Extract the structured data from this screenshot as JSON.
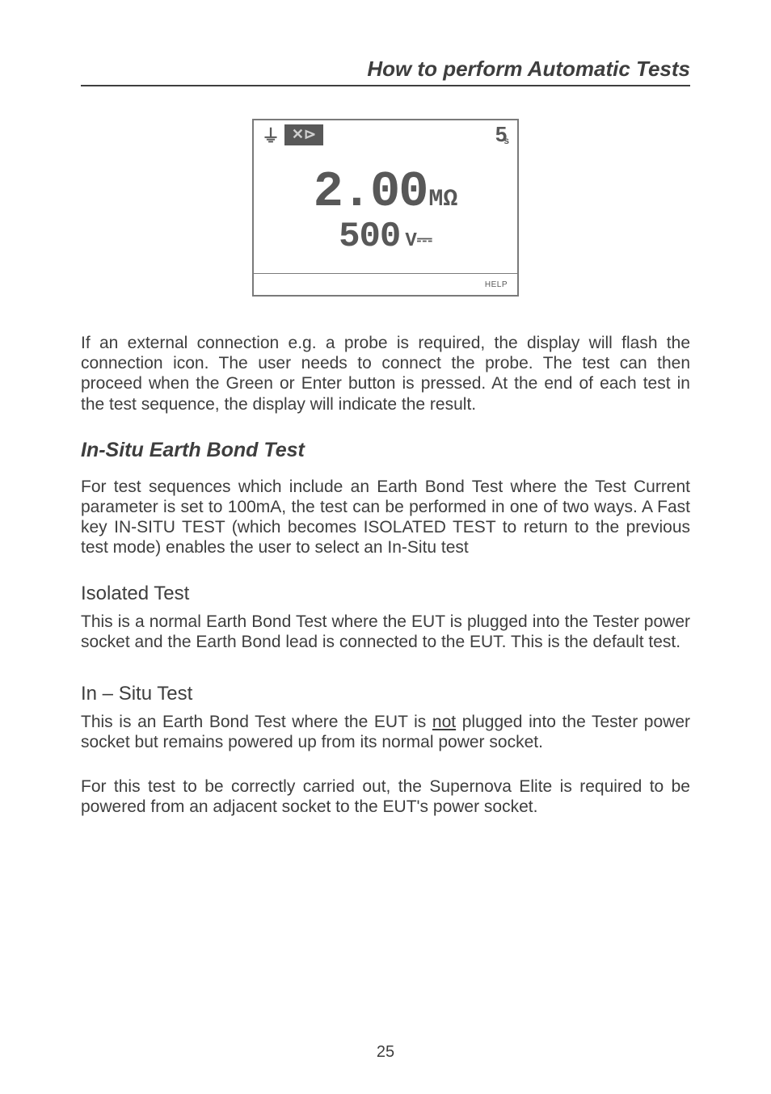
{
  "header": {
    "title": "How to perform Automatic Tests"
  },
  "lcd": {
    "timer_value": "5",
    "timer_unit": "s",
    "reading_value": "2.00",
    "reading_unit": "MΩ",
    "sub_value": "500",
    "sub_unit": "V⎓",
    "help_label": "HELP",
    "probe_glyph": "✕⊳",
    "earth_glyph": "⏚"
  },
  "paragraphs": {
    "intro": "If an external connection e.g. a probe is required, the display will flash the connection icon.  The user needs to connect the probe.  The test can then proceed when the Green or Enter button is pressed.  At the end of each test in the test sequence, the display will indicate the result.",
    "section1_title": "In-Situ Earth Bond Test",
    "section1_body": "For test sequences which include an Earth Bond Test where the Test Current parameter is set to 100mA, the test can be performed in one of two ways. A Fast key IN-SITU TEST (which becomes ISOLATED TEST to return to the previous test mode) enables the user to select an In-Situ test",
    "iso_title": "Isolated Test",
    "iso_body": "This is a normal Earth Bond Test where the EUT is plugged into the Tester power socket and the Earth Bond lead is connected to the EUT. This is the default test.",
    "insitu_title": "In – Situ Test",
    "insitu_body_pre": "This is an Earth Bond Test where the EUT is ",
    "insitu_body_underline": "not",
    "insitu_body_post": " plugged into the Tester power socket but remains powered up from its normal power socket.",
    "insitu_body2": "For this test to be correctly carried out, the Supernova Elite is required to be powered from an adjacent socket to the EUT's power socket."
  },
  "page_number": "25"
}
